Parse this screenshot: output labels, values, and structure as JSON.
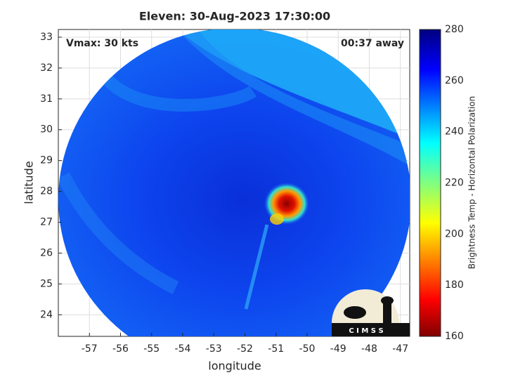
{
  "title": "Eleven: 30-Aug-2023 17:30:00",
  "annotations": {
    "left": "Vmax: 30 kts",
    "right": "00:37 away"
  },
  "x_axis": {
    "label": "longitude",
    "lim": [
      -58,
      -46.7
    ],
    "ticks": [
      -57,
      -56,
      -55,
      -54,
      -53,
      -52,
      -51,
      -50,
      -49,
      -48,
      -47
    ]
  },
  "y_axis": {
    "label": "latitude",
    "lim": [
      23.3,
      33.25
    ],
    "ticks": [
      24,
      25,
      26,
      27,
      28,
      29,
      30,
      31,
      32,
      33
    ]
  },
  "colorbar": {
    "label": "Brightness Temp - Horizontal Polarization",
    "lim": [
      160,
      280
    ],
    "ticks": [
      160,
      180,
      200,
      220,
      240,
      260,
      280
    ]
  },
  "logo": "C I M S S"
}
